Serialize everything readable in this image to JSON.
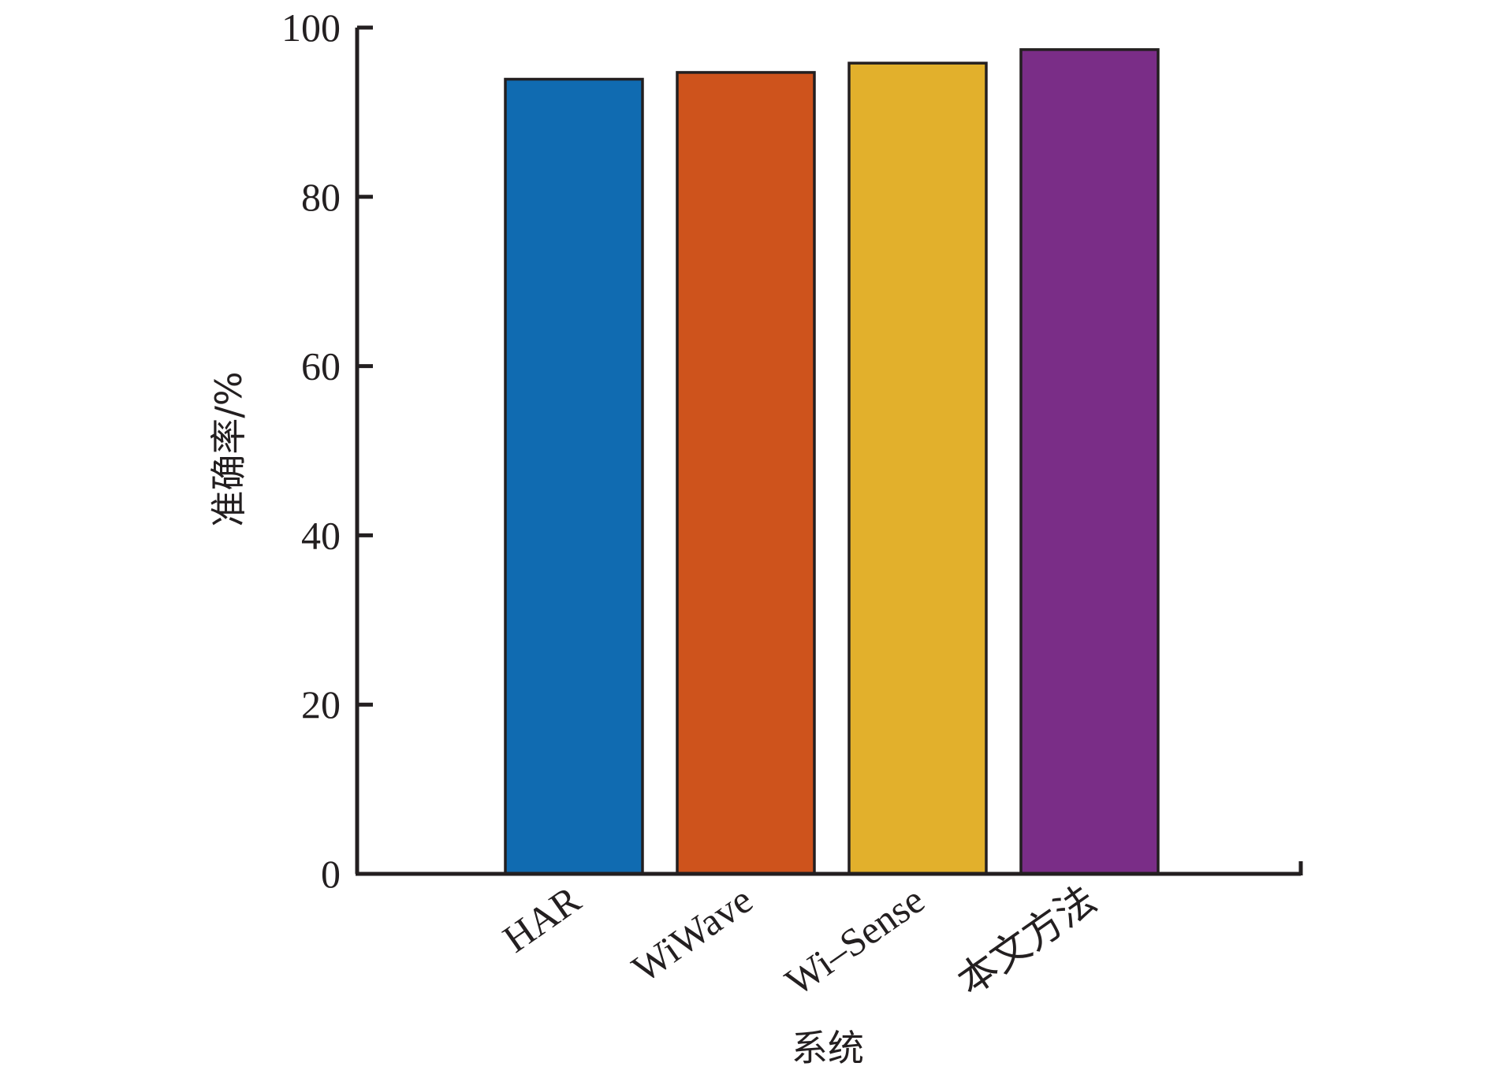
{
  "chart_data": {
    "type": "bar",
    "categories": [
      "HAR",
      "WiWave",
      "Wi–Sense",
      "本文方法"
    ],
    "values": [
      93.9,
      94.7,
      95.8,
      97.4
    ],
    "colors": [
      "#106bb1",
      "#ce531c",
      "#e2b02c",
      "#7a2d87"
    ],
    "xlabel": "系统",
    "ylabel": "准确率/%",
    "ylim": [
      0,
      100
    ],
    "yticks": [
      "0",
      "20",
      "40",
      "60",
      "80",
      "100"
    ],
    "grid": false,
    "legend": "none"
  }
}
